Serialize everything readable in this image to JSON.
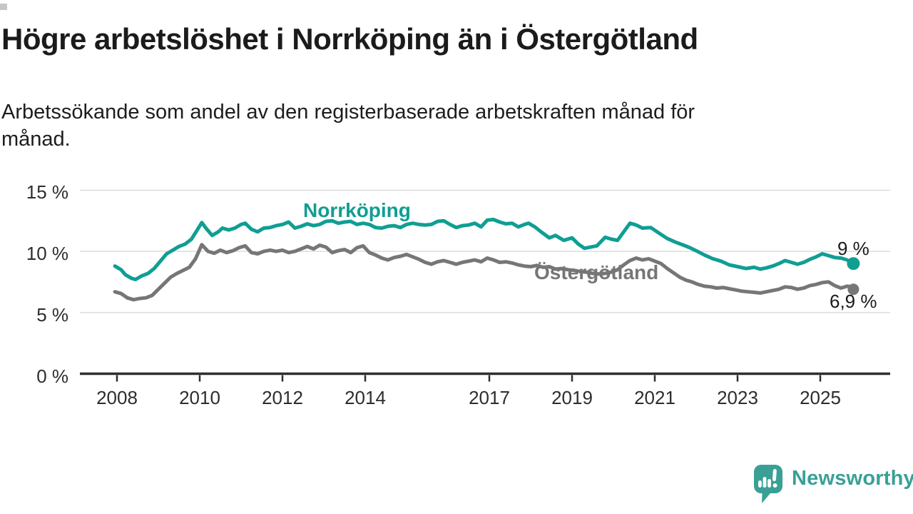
{
  "header": {
    "title": "Högre arbetslöshet i Norrköping än i Östergötland",
    "subtitle_lines": [
      "Arbetssökande som andel av den registerbaserade arbetskraften månad för",
      "månad."
    ]
  },
  "chart_data": {
    "type": "line",
    "title": "Högre arbetslöshet i Norrköping än i Östergötland",
    "subtitle": "Arbetssökande som andel av den registerbaserade arbetskraften månad för månad.",
    "grid": "horizontal-only",
    "legend_position": "inline-labels",
    "x_axis": {
      "unit": "year",
      "range": [
        2007.1,
        2026.7
      ],
      "ticks": [
        2008,
        2010,
        2012,
        2014,
        2017,
        2019,
        2021,
        2023,
        2025
      ]
    },
    "y_axis": {
      "unit": "%",
      "range": [
        0,
        15
      ],
      "ticks": [
        {
          "label": "15 %",
          "value": 15
        },
        {
          "label": "10 %",
          "value": 10
        },
        {
          "label": "5 %",
          "value": 5
        },
        {
          "label": "0 %",
          "value": 0
        }
      ]
    },
    "series": [
      {
        "name": "Norrköping",
        "color": "#109e93",
        "end_label": "9 %",
        "end_value": 9.0,
        "points": [
          [
            2007.95,
            8.8
          ],
          [
            2008.1,
            8.5
          ],
          [
            2008.2,
            8.1
          ],
          [
            2008.35,
            7.8
          ],
          [
            2008.45,
            7.7
          ],
          [
            2008.6,
            8.0
          ],
          [
            2008.75,
            8.2
          ],
          [
            2008.9,
            8.6
          ],
          [
            2009.05,
            9.2
          ],
          [
            2009.2,
            9.8
          ],
          [
            2009.35,
            10.1
          ],
          [
            2009.5,
            10.4
          ],
          [
            2009.65,
            10.6
          ],
          [
            2009.8,
            11.0
          ],
          [
            2009.95,
            11.8
          ],
          [
            2010.05,
            12.35
          ],
          [
            2010.15,
            11.9
          ],
          [
            2010.3,
            11.3
          ],
          [
            2010.45,
            11.6
          ],
          [
            2010.55,
            11.9
          ],
          [
            2010.7,
            11.75
          ],
          [
            2010.85,
            11.9
          ],
          [
            2011.0,
            12.2
          ],
          [
            2011.1,
            12.3
          ],
          [
            2011.25,
            11.8
          ],
          [
            2011.4,
            11.6
          ],
          [
            2011.55,
            11.9
          ],
          [
            2011.7,
            11.95
          ],
          [
            2011.85,
            12.1
          ],
          [
            2012.0,
            12.2
          ],
          [
            2012.15,
            12.4
          ],
          [
            2012.3,
            11.9
          ],
          [
            2012.45,
            12.05
          ],
          [
            2012.6,
            12.25
          ],
          [
            2012.75,
            12.1
          ],
          [
            2012.9,
            12.2
          ],
          [
            2013.05,
            12.45
          ],
          [
            2013.2,
            12.5
          ],
          [
            2013.35,
            12.3
          ],
          [
            2013.5,
            12.4
          ],
          [
            2013.65,
            12.45
          ],
          [
            2013.8,
            12.2
          ],
          [
            2013.95,
            12.3
          ],
          [
            2014.1,
            12.2
          ],
          [
            2014.25,
            11.95
          ],
          [
            2014.4,
            11.9
          ],
          [
            2014.55,
            12.05
          ],
          [
            2014.7,
            12.1
          ],
          [
            2014.85,
            11.95
          ],
          [
            2015.0,
            12.2
          ],
          [
            2015.15,
            12.3
          ],
          [
            2015.3,
            12.2
          ],
          [
            2015.45,
            12.15
          ],
          [
            2015.6,
            12.2
          ],
          [
            2015.75,
            12.45
          ],
          [
            2015.9,
            12.5
          ],
          [
            2016.05,
            12.2
          ],
          [
            2016.2,
            11.95
          ],
          [
            2016.35,
            12.1
          ],
          [
            2016.5,
            12.15
          ],
          [
            2016.65,
            12.3
          ],
          [
            2016.8,
            12.0
          ],
          [
            2016.95,
            12.55
          ],
          [
            2017.1,
            12.6
          ],
          [
            2017.25,
            12.4
          ],
          [
            2017.4,
            12.25
          ],
          [
            2017.55,
            12.3
          ],
          [
            2017.7,
            12.0
          ],
          [
            2017.85,
            12.2
          ],
          [
            2017.95,
            12.3
          ],
          [
            2018.1,
            12.0
          ],
          [
            2018.25,
            11.6
          ],
          [
            2018.45,
            11.1
          ],
          [
            2018.6,
            11.3
          ],
          [
            2018.8,
            10.9
          ],
          [
            2019.0,
            11.1
          ],
          [
            2019.15,
            10.6
          ],
          [
            2019.3,
            10.25
          ],
          [
            2019.45,
            10.35
          ],
          [
            2019.6,
            10.45
          ],
          [
            2019.8,
            11.15
          ],
          [
            2019.95,
            11.0
          ],
          [
            2020.1,
            10.9
          ],
          [
            2020.25,
            11.6
          ],
          [
            2020.4,
            12.3
          ],
          [
            2020.55,
            12.15
          ],
          [
            2020.7,
            11.9
          ],
          [
            2020.9,
            11.95
          ],
          [
            2021.1,
            11.5
          ],
          [
            2021.3,
            11.05
          ],
          [
            2021.5,
            10.75
          ],
          [
            2021.7,
            10.5
          ],
          [
            2021.85,
            10.3
          ],
          [
            2022.0,
            10.05
          ],
          [
            2022.2,
            9.7
          ],
          [
            2022.4,
            9.4
          ],
          [
            2022.6,
            9.2
          ],
          [
            2022.8,
            8.9
          ],
          [
            2023.0,
            8.75
          ],
          [
            2023.2,
            8.6
          ],
          [
            2023.4,
            8.7
          ],
          [
            2023.55,
            8.55
          ],
          [
            2023.7,
            8.65
          ],
          [
            2023.85,
            8.8
          ],
          [
            2024.0,
            9.0
          ],
          [
            2024.15,
            9.25
          ],
          [
            2024.3,
            9.1
          ],
          [
            2024.45,
            8.95
          ],
          [
            2024.6,
            9.1
          ],
          [
            2024.75,
            9.35
          ],
          [
            2024.9,
            9.55
          ],
          [
            2025.05,
            9.8
          ],
          [
            2025.2,
            9.65
          ],
          [
            2025.35,
            9.5
          ],
          [
            2025.5,
            9.45
          ],
          [
            2025.65,
            9.3
          ],
          [
            2025.8,
            9.0
          ]
        ]
      },
      {
        "name": "Östergötland",
        "color": "#767676",
        "end_label": "6,9 %",
        "end_value": 6.9,
        "points": [
          [
            2007.95,
            6.7
          ],
          [
            2008.1,
            6.55
          ],
          [
            2008.25,
            6.2
          ],
          [
            2008.4,
            6.05
          ],
          [
            2008.55,
            6.15
          ],
          [
            2008.7,
            6.2
          ],
          [
            2008.85,
            6.4
          ],
          [
            2009.0,
            6.9
          ],
          [
            2009.15,
            7.4
          ],
          [
            2009.3,
            7.9
          ],
          [
            2009.45,
            8.2
          ],
          [
            2009.6,
            8.45
          ],
          [
            2009.75,
            8.7
          ],
          [
            2009.9,
            9.4
          ],
          [
            2010.05,
            10.55
          ],
          [
            2010.2,
            10.0
          ],
          [
            2010.35,
            9.85
          ],
          [
            2010.5,
            10.1
          ],
          [
            2010.65,
            9.9
          ],
          [
            2010.8,
            10.05
          ],
          [
            2010.95,
            10.3
          ],
          [
            2011.1,
            10.45
          ],
          [
            2011.25,
            9.9
          ],
          [
            2011.4,
            9.8
          ],
          [
            2011.55,
            10.0
          ],
          [
            2011.7,
            10.1
          ],
          [
            2011.85,
            10.0
          ],
          [
            2012.0,
            10.1
          ],
          [
            2012.15,
            9.9
          ],
          [
            2012.3,
            10.0
          ],
          [
            2012.45,
            10.2
          ],
          [
            2012.6,
            10.4
          ],
          [
            2012.75,
            10.2
          ],
          [
            2012.9,
            10.5
          ],
          [
            2013.05,
            10.35
          ],
          [
            2013.2,
            9.9
          ],
          [
            2013.35,
            10.05
          ],
          [
            2013.5,
            10.15
          ],
          [
            2013.65,
            9.9
          ],
          [
            2013.8,
            10.3
          ],
          [
            2013.95,
            10.45
          ],
          [
            2014.1,
            9.9
          ],
          [
            2014.25,
            9.7
          ],
          [
            2014.4,
            9.45
          ],
          [
            2014.55,
            9.3
          ],
          [
            2014.7,
            9.5
          ],
          [
            2014.85,
            9.6
          ],
          [
            2015.0,
            9.75
          ],
          [
            2015.15,
            9.55
          ],
          [
            2015.3,
            9.35
          ],
          [
            2015.45,
            9.1
          ],
          [
            2015.6,
            8.95
          ],
          [
            2015.75,
            9.15
          ],
          [
            2015.9,
            9.25
          ],
          [
            2016.05,
            9.1
          ],
          [
            2016.2,
            8.95
          ],
          [
            2016.35,
            9.1
          ],
          [
            2016.5,
            9.2
          ],
          [
            2016.65,
            9.3
          ],
          [
            2016.8,
            9.15
          ],
          [
            2016.95,
            9.45
          ],
          [
            2017.1,
            9.3
          ],
          [
            2017.25,
            9.1
          ],
          [
            2017.4,
            9.15
          ],
          [
            2017.55,
            9.05
          ],
          [
            2017.7,
            8.9
          ],
          [
            2017.85,
            8.8
          ],
          [
            2018.0,
            8.75
          ],
          [
            2018.15,
            8.85
          ],
          [
            2018.3,
            8.7
          ],
          [
            2018.45,
            8.75
          ],
          [
            2018.6,
            8.55
          ],
          [
            2018.75,
            8.6
          ],
          [
            2018.9,
            8.5
          ],
          [
            2019.05,
            8.45
          ],
          [
            2019.2,
            8.35
          ],
          [
            2019.35,
            8.3
          ],
          [
            2019.5,
            8.2
          ],
          [
            2019.65,
            8.15
          ],
          [
            2019.8,
            8.2
          ],
          [
            2019.95,
            8.3
          ],
          [
            2020.1,
            8.5
          ],
          [
            2020.25,
            8.9
          ],
          [
            2020.4,
            9.25
          ],
          [
            2020.55,
            9.45
          ],
          [
            2020.7,
            9.3
          ],
          [
            2020.85,
            9.4
          ],
          [
            2021.0,
            9.2
          ],
          [
            2021.15,
            9.0
          ],
          [
            2021.3,
            8.6
          ],
          [
            2021.45,
            8.25
          ],
          [
            2021.6,
            7.9
          ],
          [
            2021.75,
            7.65
          ],
          [
            2021.9,
            7.5
          ],
          [
            2022.05,
            7.3
          ],
          [
            2022.2,
            7.15
          ],
          [
            2022.35,
            7.1
          ],
          [
            2022.5,
            7.0
          ],
          [
            2022.65,
            7.05
          ],
          [
            2022.8,
            6.95
          ],
          [
            2022.95,
            6.85
          ],
          [
            2023.1,
            6.75
          ],
          [
            2023.25,
            6.7
          ],
          [
            2023.4,
            6.65
          ],
          [
            2023.55,
            6.6
          ],
          [
            2023.7,
            6.7
          ],
          [
            2023.85,
            6.8
          ],
          [
            2024.0,
            6.9
          ],
          [
            2024.15,
            7.1
          ],
          [
            2024.3,
            7.05
          ],
          [
            2024.45,
            6.9
          ],
          [
            2024.6,
            7.0
          ],
          [
            2024.75,
            7.2
          ],
          [
            2024.9,
            7.3
          ],
          [
            2025.05,
            7.45
          ],
          [
            2025.2,
            7.5
          ],
          [
            2025.35,
            7.2
          ],
          [
            2025.5,
            7.0
          ],
          [
            2025.65,
            7.15
          ],
          [
            2025.75,
            7.1
          ],
          [
            2025.8,
            6.9
          ]
        ]
      }
    ]
  },
  "footer": {
    "brand": "Newsworthy",
    "brand_color": "#3aa096"
  },
  "colors": {
    "background": "#ffffff",
    "title_text": "#1b1b1b",
    "axis_text": "#2d2d2d",
    "axis_line": "#2e2e2e",
    "gridline": "#d9d9d9",
    "norrkoping_teal": "#109e93",
    "ostergotland_gray": "#767676"
  }
}
